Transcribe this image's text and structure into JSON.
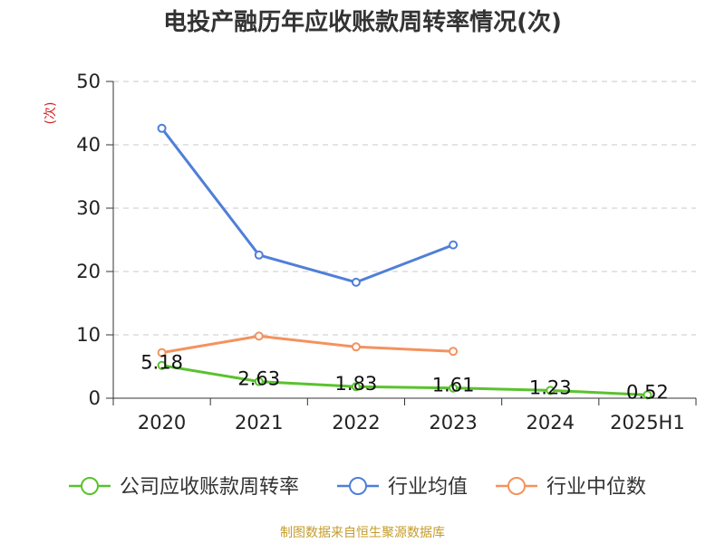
{
  "page": {
    "title": "电投产融历年应收账款周转率情况(次)",
    "source": "制图数据来自恒生聚源数据库"
  },
  "chart_data": {
    "type": "line",
    "title": "电投产融历年应收账款周转率情况(次)",
    "ylabel": "(次)",
    "xlabel": "",
    "categories": [
      "2020",
      "2021",
      "2022",
      "2023",
      "2024",
      "2025H1"
    ],
    "ylim": [
      0,
      50
    ],
    "yticks": [
      0,
      10,
      20,
      30,
      40,
      50
    ],
    "grid": true,
    "legend_position": "bottom",
    "series": [
      {
        "name": "公司应收账款周转率",
        "color": "#5ac22e",
        "values": [
          5.18,
          2.63,
          1.83,
          1.61,
          1.23,
          0.52
        ],
        "labels": [
          "5.18",
          "2.63",
          "1.83",
          "1.61",
          "1.23",
          "0.52"
        ]
      },
      {
        "name": "行业均值",
        "color": "#4f7fd8",
        "values": [
          42.6,
          22.6,
          18.3,
          24.2,
          null,
          null
        ]
      },
      {
        "name": "行业中位数",
        "color": "#f4925e",
        "values": [
          7.2,
          9.8,
          8.1,
          7.4,
          null,
          null
        ]
      }
    ]
  }
}
